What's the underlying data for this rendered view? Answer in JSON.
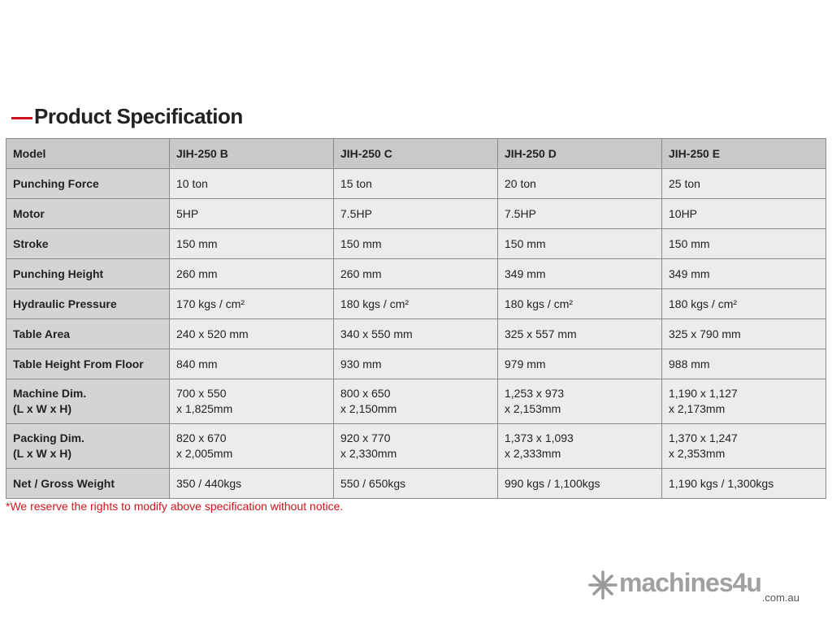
{
  "header": {
    "title": "Product Specification"
  },
  "table": {
    "columns": [
      "Model",
      "JIH-250 B",
      "JIH-250 C",
      "JIH-250 D",
      "JIH-250 E"
    ],
    "rows": [
      [
        "Punching Force",
        "10 ton",
        "15 ton",
        "20 ton",
        "25 ton"
      ],
      [
        "Motor",
        "5HP",
        "7.5HP",
        "7.5HP",
        "10HP"
      ],
      [
        "Stroke",
        "150 mm",
        "150 mm",
        "150 mm",
        "150 mm"
      ],
      [
        "Punching Height",
        "260 mm",
        "260 mm",
        "349 mm",
        "349 mm"
      ],
      [
        "Hydraulic Pressure",
        "170 kgs / cm²",
        "180 kgs / cm²",
        "180 kgs / cm²",
        "180 kgs / cm²"
      ],
      [
        "Table Area",
        "240 x 520 mm",
        "340 x 550 mm",
        "325 x 557 mm",
        "325 x 790 mm"
      ],
      [
        "Table Height From Floor",
        "840 mm",
        "930 mm",
        "979 mm",
        "988 mm"
      ],
      [
        [
          "Machine Dim.",
          "(L x W x H)"
        ],
        [
          "700 x 550",
          "x 1,825mm"
        ],
        [
          "800 x 650",
          "x 2,150mm"
        ],
        [
          "1,253 x 973",
          "x 2,153mm"
        ],
        [
          "1,190 x 1,127",
          "x 2,173mm"
        ]
      ],
      [
        [
          "Packing Dim.",
          "(L x W x H)"
        ],
        [
          "820 x 670",
          "x 2,005mm"
        ],
        [
          "920 x 770",
          "x 2,330mm"
        ],
        [
          "1,373 x 1,093",
          "x 2,333mm"
        ],
        [
          "1,370 x 1,247",
          "x 2,353mm"
        ]
      ],
      [
        "Net / Gross Weight",
        "350 / 440kgs",
        "550 / 650kgs",
        "990 kgs / 1,100kgs",
        "1,190 kgs / 1,300kgs"
      ]
    ]
  },
  "note": "*We reserve the rights to modify above specification without notice.",
  "logo": {
    "name": "machines4u",
    "domain": ".com.au"
  }
}
